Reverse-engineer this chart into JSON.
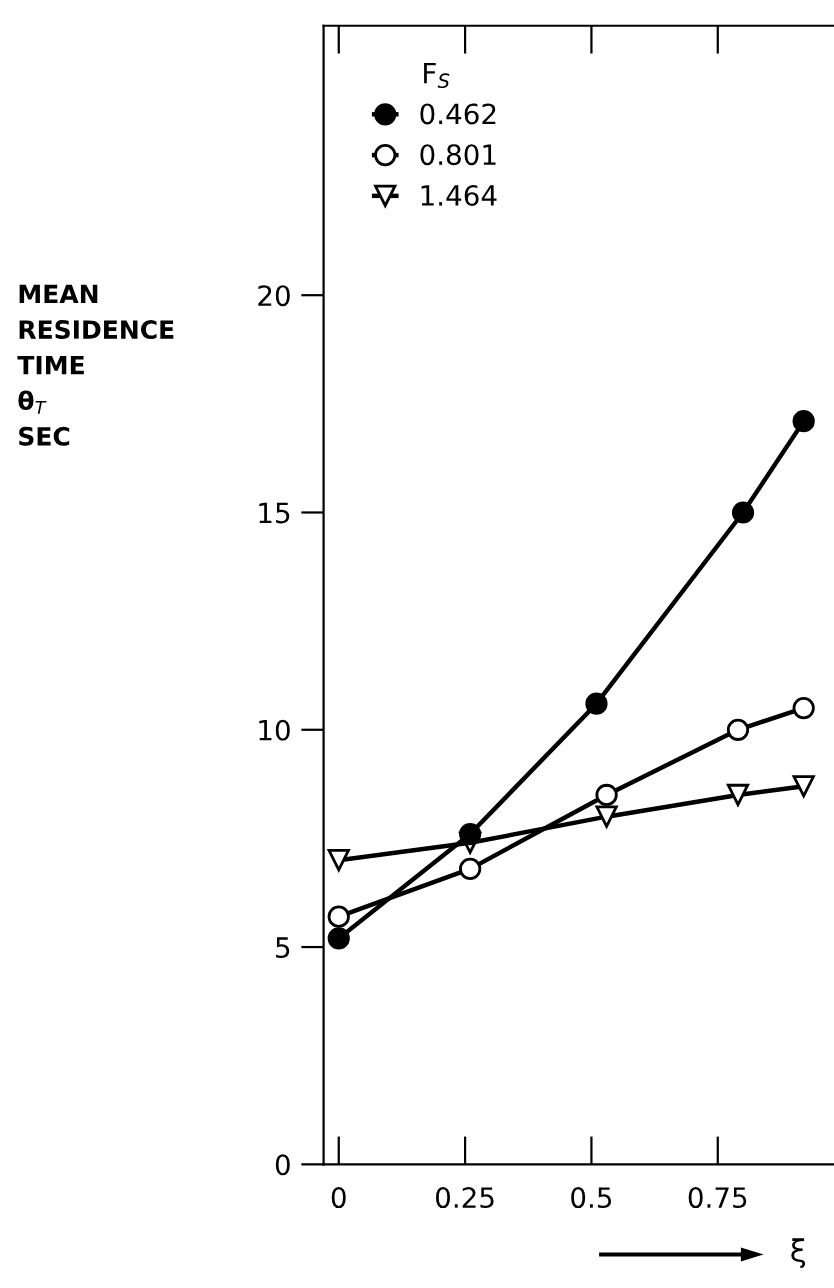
{
  "chart_data": {
    "type": "line",
    "ylabel": "MEAN\nRESIDENCE\nTIME\nθ$_{T}$\nSEC",
    "xlabel": "ξ",
    "legend_title": "F$_{S}$",
    "legend": "top left",
    "xlim": [
      -0.03,
      0.98
    ],
    "ylim": [
      0,
      26.2
    ],
    "xticks": [
      {
        "value": 0,
        "label": "0"
      },
      0.25,
      0.5,
      0.75
    ],
    "yticks": [
      0,
      5,
      10,
      15,
      20
    ],
    "grid": false,
    "line_style": "solid",
    "series": [
      {
        "name": "0.462",
        "color": "#000000",
        "marker": "circle",
        "x": [
          0,
          0.26,
          0.51,
          0.8,
          0.92
        ],
        "values": [
          5.2,
          7.6,
          10.6,
          15.0,
          17.1
        ]
      },
      {
        "name": "0.801",
        "color": "#ffffff",
        "marker": "circle",
        "x": [
          0,
          0.26,
          0.53,
          0.79,
          0.92
        ],
        "values": [
          5.7,
          6.8,
          8.5,
          10.0,
          10.5
        ]
      },
      {
        "name": "1.464",
        "color": "#ffffff",
        "marker": "triangle",
        "x": [
          0,
          0.26,
          0.53,
          0.79,
          0.92
        ],
        "values": [
          7.0,
          7.4,
          8.0,
          8.5,
          8.7
        ]
      }
    ]
  }
}
